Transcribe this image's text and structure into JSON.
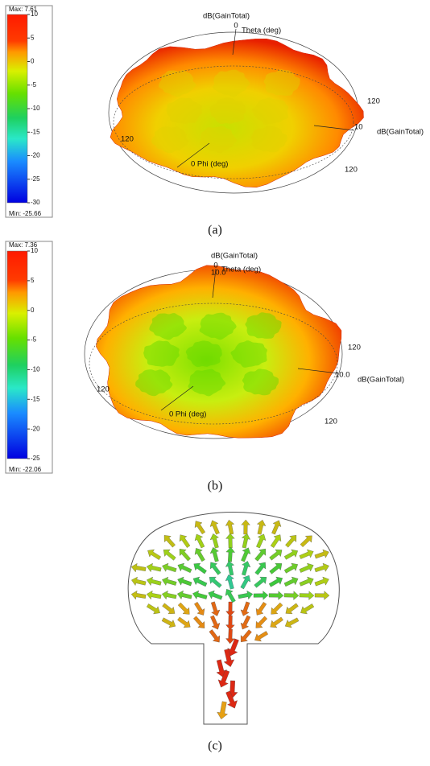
{
  "panels": [
    {
      "legend": {
        "max": "Max: 7.61",
        "ticks": [
          "10",
          "5",
          "0",
          "-5",
          "-10",
          "-15",
          "-20",
          "-25",
          "-30"
        ],
        "min": "Min: -25.66"
      },
      "labels": [
        "dB(GainTotal)",
        "0",
        "Theta (deg)",
        "120",
        "10",
        "dB(GainTotal)",
        "120",
        "0 Phi (deg)",
        "120"
      ],
      "caption": "(a)"
    },
    {
      "legend": {
        "max": "Max: 7.36",
        "ticks": [
          "10",
          "5",
          "0",
          "-5",
          "-10",
          "-15",
          "-20",
          "-25"
        ],
        "min": "Min: -22.06"
      },
      "labels": [
        "dB(GainTotal)",
        "0",
        "10.0",
        "Theta (deg)",
        "120",
        "10.0",
        "dB(GainTotal)",
        "120",
        "0 Phi (deg)",
        "120"
      ],
      "caption": "(b)"
    }
  ],
  "current": {
    "caption": "(c)"
  }
}
